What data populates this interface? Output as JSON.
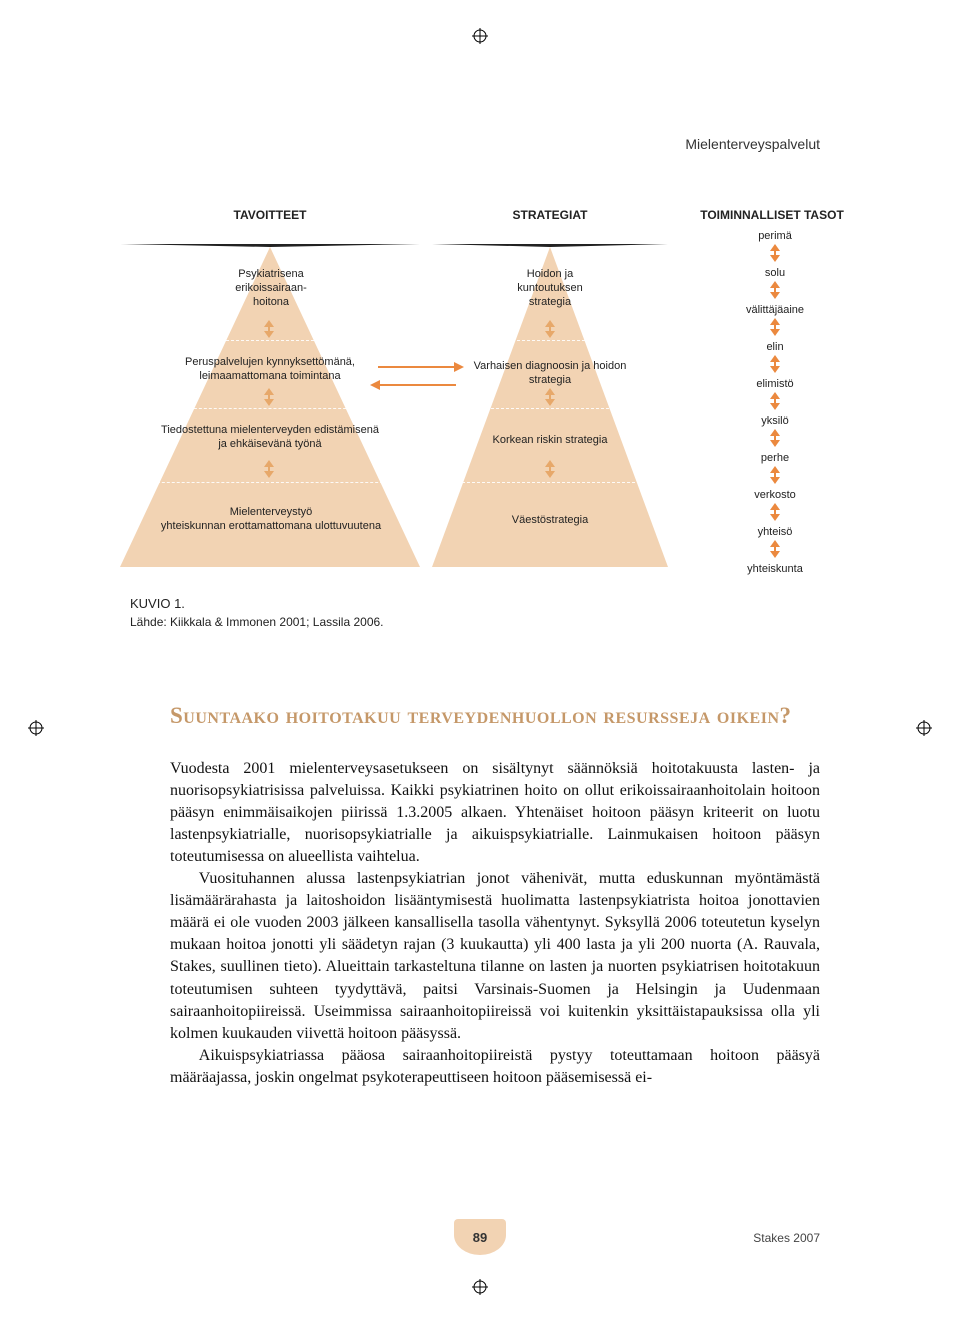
{
  "running_head": "Mielenterveyspalvelut",
  "diagram": {
    "headers": {
      "left": "TAVOITTEET",
      "center": "STRATEGIAT",
      "right": "TOIMINNALLISET TASOT"
    },
    "triangle_fill": "#f2d3b3",
    "dash_color": "#ffffff",
    "arrow_color": "#eb893f",
    "left_levels": [
      "Psykiatrisena\nerikoissairaan-\nhoitona",
      "Peruspalvelujen kynnyksettömänä,\nleimaamattomana toimintana",
      "Tiedostettuna mielenterveyden edistämisenä\nja ehkäisevänä työnä",
      "Mielenterveystyö\nyhteiskunnan erottamattomana ulottuvuutena"
    ],
    "center_levels": [
      "Hoidon ja\nkuntoutuksen\nstrategia",
      "Varhaisen diagnoosin ja hoidon\nstrategia",
      "Korkean riskin strategia",
      "Väestöstrategia"
    ],
    "right_levels": [
      "perimä",
      "solu",
      "välittäjäaine",
      "elin",
      "elimistö",
      "yksilö",
      "perhe",
      "verkosto",
      "yhteisö",
      "yhteiskunta"
    ]
  },
  "caption": {
    "label": "KUVIO 1.",
    "source": "Lähde: Kiikkala & Immonen 2001; Lassila 2006."
  },
  "section_title": "Suuntaako hoitotakuu terveydenhuollon resursseja oikein?",
  "paragraphs": [
    "Vuodesta 2001 mielenterveysasetukseen on sisältynyt säännöksiä hoitotakuusta lasten- ja nuorisopsykiatrisissa palveluissa. Kaikki psykiatrinen hoito on ollut erikoissairaanhoitolain hoitoon pääsyn enimmäisaikojen piirissä 1.3.2005 alkaen. Yhtenäiset hoitoon pääsyn kriteerit on luotu lastenpsykiatrialle, nuorisopsykiatrialle ja aikuispsykiatrialle. Lainmukaisen hoitoon pääsyn toteutumisessa on alueellista vaihtelua.",
    "Vuosituhannen alussa lastenpsykiatrian jonot vähenivät, mutta eduskunnan myöntämästä lisämäärärahasta ja laitoshoidon lisääntymisestä huolimatta lastenpsykiatrista hoitoa jonottavien määrä ei ole vuoden 2003 jälkeen kansallisella tasolla vähentynyt. Syksyllä 2006 toteutetun kyselyn mukaan hoitoa jonotti yli säädetyn rajan (3 kuukautta) yli 400 lasta ja yli 200 nuorta (A. Rauvala, Stakes, suullinen tieto). Alueittain tarkasteltuna tilanne on lasten ja nuorten psykiatrisen hoitotakuun toteutumisen suhteen tyydyttävä, paitsi Varsinais-Suomen ja Helsingin ja Uudenmaan sairaanhoitopiireissä. Useimmissa sairaanhoitopiireissä voi kuitenkin yksittäistapauksissa olla yli kolmen kuukauden viivettä hoitoon pääsyssä.",
    "Aikuispsykiatriassa pääosa sairaanhoitopiireistä pystyy toteuttamaan hoitoon pääsyä määräajassa, joskin ongelmat psykoterapeuttiseen hoitoon pääsemisessä ei-"
  ],
  "footer": {
    "page": "89",
    "publisher": "Stakes 2007"
  }
}
